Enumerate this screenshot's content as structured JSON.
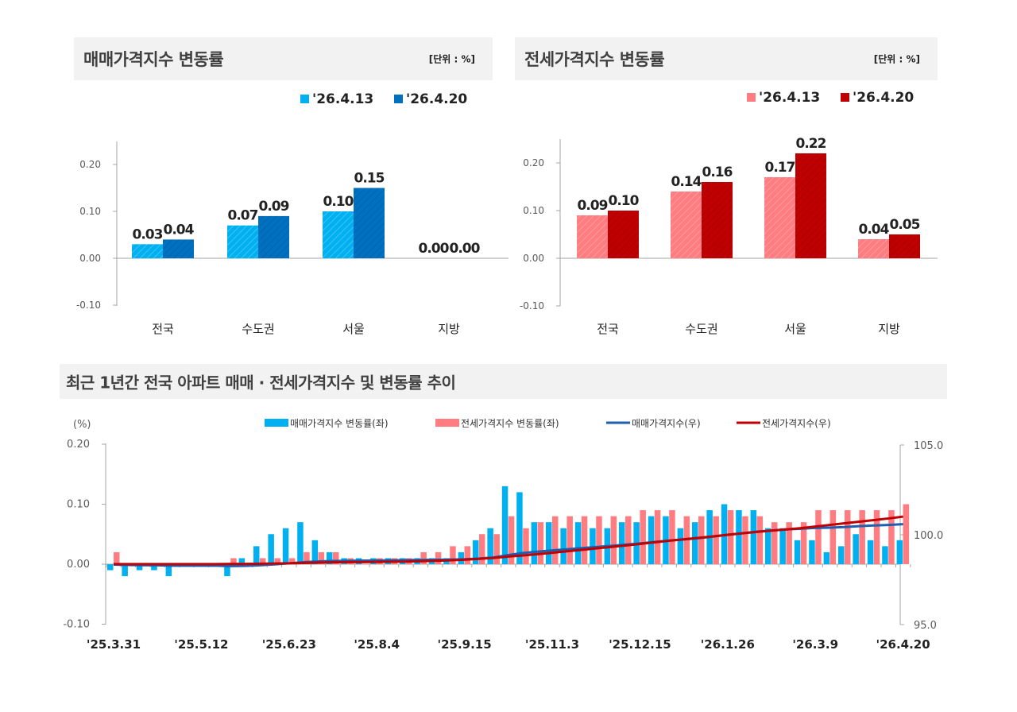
{
  "sale_panel": {
    "title": "매매가격지수 변동률",
    "unit": "[단위 : %]"
  },
  "jeonse_panel": {
    "title": "전세가격지수 변동률",
    "unit": "[단위 : %]"
  },
  "trend_panel": {
    "title": "최근 1년간 전국 아파트 매매 · 전세가격지수 및 변동률 추이"
  },
  "chart_data": [
    {
      "id": "sale",
      "type": "bar",
      "categories": [
        "전국",
        "수도권",
        "서울",
        "지방"
      ],
      "series": [
        {
          "name": "'26.4.13",
          "values": [
            0.03,
            0.07,
            0.1,
            0.0
          ],
          "color": "#00B0F0"
        },
        {
          "name": "'26.4.20",
          "values": [
            0.04,
            0.09,
            0.15,
            0.0
          ],
          "color": "#0070C0"
        }
      ],
      "ylim": [
        -0.1,
        0.2
      ],
      "yticks": [
        "0.20",
        "0.10",
        "0.00",
        "-0.10"
      ],
      "ytick_values": [
        0.2,
        0.1,
        0,
        -0.1
      ],
      "legend": "top-right",
      "grid": false
    },
    {
      "id": "jeonse",
      "type": "bar",
      "categories": [
        "전국",
        "수도권",
        "서울",
        "지방"
      ],
      "series": [
        {
          "name": "'26.4.13",
          "values": [
            0.09,
            0.14,
            0.17,
            0.04
          ],
          "color": "#FF7C80"
        },
        {
          "name": "'26.4.20",
          "values": [
            0.1,
            0.16,
            0.22,
            0.05
          ],
          "color": "#C00000"
        }
      ],
      "ylim": [
        -0.1,
        0.2
      ],
      "yticks": [
        "0.20",
        "0.10",
        "0.00",
        "-0.10"
      ],
      "ytick_values": [
        0.2,
        0.1,
        0,
        -0.1
      ],
      "legend": "top-right",
      "grid": false
    },
    {
      "id": "trend",
      "type": "bar+line",
      "left_axis_label": "(%)",
      "ylim_left": [
        -0.1,
        0.2
      ],
      "yticks_left": [
        "0.20",
        "0.10",
        "0.00",
        "-0.10"
      ],
      "ytick_values_left": [
        0.2,
        0.1,
        0,
        -0.1
      ],
      "ylim_right": [
        95.0,
        105.0
      ],
      "yticks_right": [
        "105.0",
        "100.0",
        "95.0"
      ],
      "ytick_values_right": [
        105,
        100,
        95
      ],
      "xtick_labels": [
        "'25.3.31",
        "'25.5.12",
        "'25.6.23",
        "'25.8.4",
        "'25.9.15",
        "'25.11.3",
        "'25.12.15",
        "'26.1.26",
        "'26.3.9",
        "'26.4.20"
      ],
      "xtick_index": [
        0,
        6,
        12,
        18,
        24,
        30,
        36,
        42,
        48,
        54
      ],
      "legend": "top",
      "grid": false,
      "series": [
        {
          "name": "매매가격지수 변동률(좌)",
          "kind": "bar",
          "axis": "left",
          "color": "#00B0F0",
          "values": [
            -0.01,
            -0.02,
            -0.01,
            -0.01,
            -0.02,
            0.0,
            0.0,
            0.0,
            -0.02,
            0.01,
            0.03,
            0.05,
            0.06,
            0.07,
            0.04,
            0.02,
            0.01,
            0.01,
            0.01,
            0.01,
            0.01,
            0.01,
            0.01,
            0.01,
            0.02,
            0.04,
            0.06,
            0.13,
            0.12,
            0.07,
            0.07,
            0.06,
            0.07,
            0.06,
            0.06,
            0.07,
            0.07,
            0.08,
            0.08,
            0.06,
            0.07,
            0.09,
            0.1,
            0.09,
            0.09,
            0.06,
            0.06,
            0.04,
            0.04,
            0.02,
            0.03,
            0.05,
            0.04,
            0.03,
            0.04
          ]
        },
        {
          "name": "전세가격지수 변동률(좌)",
          "kind": "bar",
          "axis": "left",
          "color": "#FF7C80",
          "values": [
            0.02,
            0.0,
            0.0,
            0.0,
            0.0,
            0.0,
            0.0,
            0.0,
            0.01,
            0.0,
            0.01,
            0.01,
            0.01,
            0.02,
            0.02,
            0.02,
            0.01,
            0.0,
            0.01,
            0.01,
            0.01,
            0.02,
            0.02,
            0.03,
            0.03,
            0.05,
            0.05,
            0.08,
            0.06,
            0.07,
            0.08,
            0.08,
            0.08,
            0.08,
            0.08,
            0.08,
            0.09,
            0.09,
            0.09,
            0.08,
            0.08,
            0.08,
            0.09,
            0.08,
            0.08,
            0.07,
            0.07,
            0.07,
            0.09,
            0.09,
            0.09,
            0.09,
            0.09,
            0.09,
            0.1
          ]
        },
        {
          "name": "매매가격지수(우)",
          "kind": "line",
          "axis": "right",
          "color": "#1F5FAF",
          "values": [
            98.34,
            98.32,
            98.31,
            98.3,
            98.28,
            98.28,
            98.28,
            98.28,
            98.26,
            98.27,
            98.3,
            98.35,
            98.41,
            98.48,
            98.52,
            98.54,
            98.55,
            98.56,
            98.57,
            98.58,
            98.59,
            98.6,
            98.61,
            98.62,
            98.64,
            98.68,
            98.74,
            98.87,
            98.99,
            99.06,
            99.13,
            99.19,
            99.26,
            99.32,
            99.38,
            99.45,
            99.52,
            99.6,
            99.68,
            99.74,
            99.81,
            99.9,
            100.0,
            100.09,
            100.18,
            100.24,
            100.3,
            100.34,
            100.38,
            100.4,
            100.43,
            100.48,
            100.52,
            100.55,
            100.59
          ]
        },
        {
          "name": "전세가격지수(우)",
          "kind": "line",
          "axis": "right",
          "color": "#C00000",
          "values": [
            98.37,
            98.37,
            98.37,
            98.37,
            98.37,
            98.37,
            98.37,
            98.37,
            98.38,
            98.38,
            98.39,
            98.4,
            98.41,
            98.43,
            98.45,
            98.47,
            98.48,
            98.48,
            98.49,
            98.5,
            98.51,
            98.53,
            98.55,
            98.58,
            98.61,
            98.66,
            98.71,
            98.79,
            98.85,
            98.92,
            99.0,
            99.08,
            99.16,
            99.24,
            99.32,
            99.4,
            99.49,
            99.58,
            99.67,
            99.75,
            99.83,
            99.91,
            100.0,
            100.08,
            100.16,
            100.23,
            100.3,
            100.37,
            100.46,
            100.55,
            100.64,
            100.73,
            100.82,
            100.91,
            101.01
          ]
        }
      ]
    }
  ]
}
